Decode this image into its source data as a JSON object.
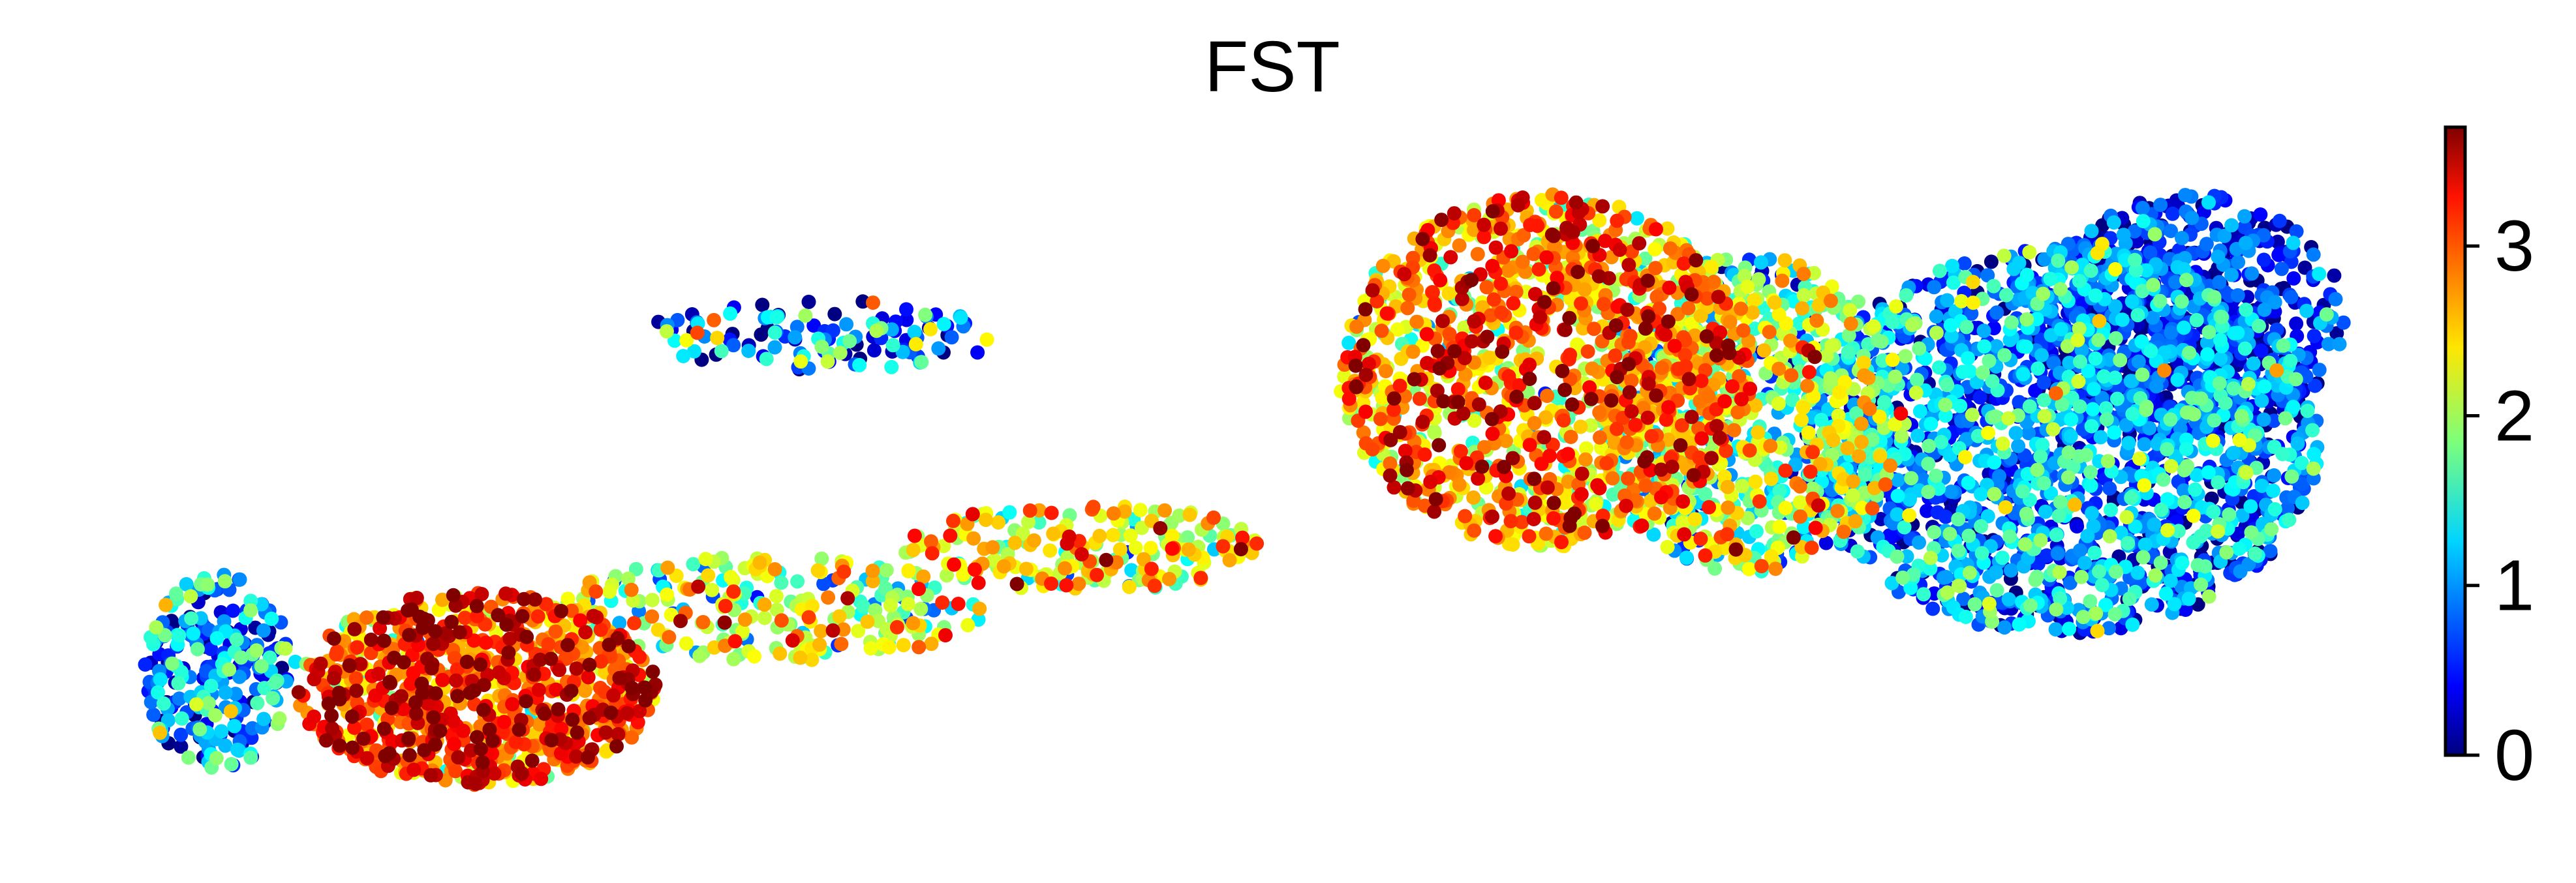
{
  "chart_data": {
    "type": "scatter",
    "title": "FST",
    "xlabel": "",
    "ylabel": "",
    "colormap": "jet",
    "colorbar": {
      "range": [
        0,
        3.7
      ],
      "ticks": [
        0,
        1,
        2,
        3
      ],
      "tick_labels": [
        "0",
        "1",
        "2",
        "3"
      ]
    },
    "axes_visible": false,
    "grid": false,
    "regions": [
      {
        "cx": 0.085,
        "cy": 0.76,
        "rx": 0.03,
        "ry": 0.11,
        "n": 260,
        "mean": 0.9,
        "spread": 0.7
      },
      {
        "cx": 0.185,
        "cy": 0.78,
        "rx": 0.07,
        "ry": 0.11,
        "n": 900,
        "mean": 2.9,
        "spread": 0.55
      },
      {
        "cx": 0.3,
        "cy": 0.69,
        "rx": 0.085,
        "ry": 0.06,
        "n": 260,
        "mean": 2.1,
        "spread": 0.6
      },
      {
        "cx": 0.42,
        "cy": 0.62,
        "rx": 0.07,
        "ry": 0.05,
        "n": 220,
        "mean": 2.3,
        "spread": 0.6
      },
      {
        "cx": 0.32,
        "cy": 0.38,
        "rx": 0.07,
        "ry": 0.04,
        "n": 120,
        "mean": 1.0,
        "spread": 0.8
      },
      {
        "cx": 0.6,
        "cy": 0.42,
        "rx": 0.08,
        "ry": 0.2,
        "n": 1300,
        "mean": 2.6,
        "spread": 0.6
      },
      {
        "cx": 0.68,
        "cy": 0.47,
        "rx": 0.06,
        "ry": 0.18,
        "n": 800,
        "mean": 1.8,
        "spread": 0.7
      },
      {
        "cx": 0.8,
        "cy": 0.5,
        "rx": 0.1,
        "ry": 0.22,
        "n": 1900,
        "mean": 0.9,
        "spread": 0.6
      },
      {
        "cx": 0.85,
        "cy": 0.36,
        "rx": 0.06,
        "ry": 0.14,
        "n": 600,
        "mean": 0.5,
        "spread": 0.5
      }
    ]
  }
}
